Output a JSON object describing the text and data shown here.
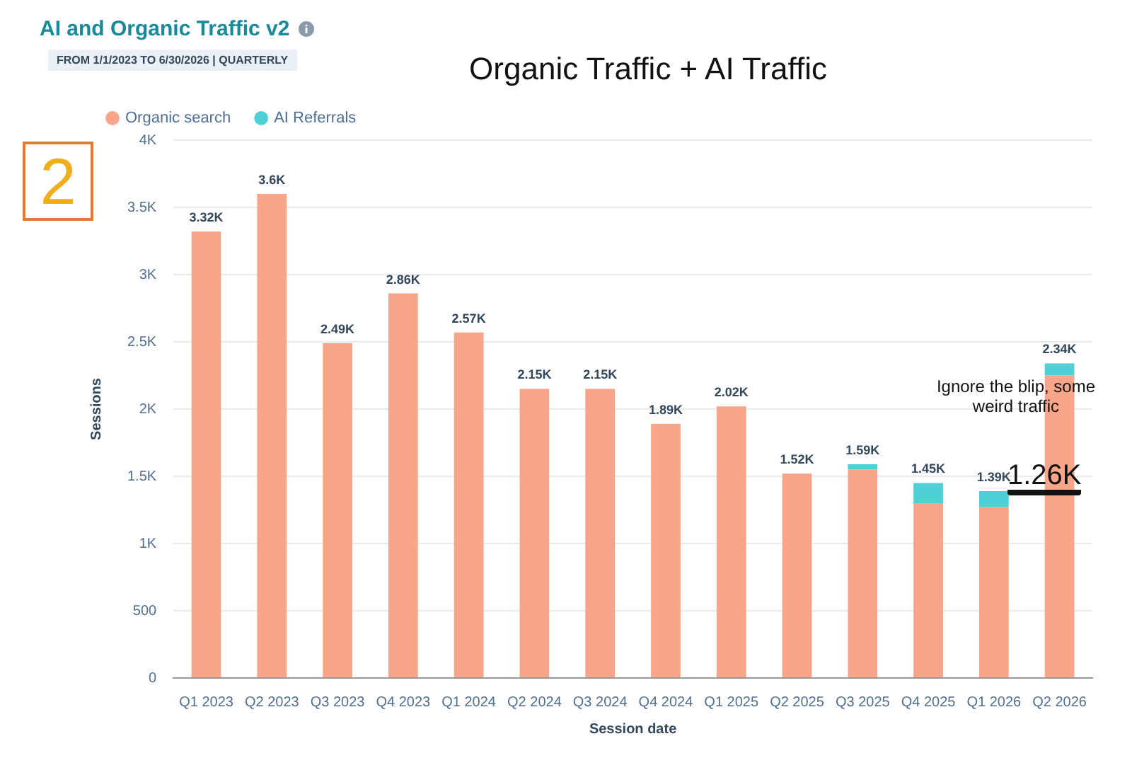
{
  "chart_data": {
    "type": "bar",
    "title": "AI and Organic Traffic v2",
    "subtitle": "FROM 1/1/2023 TO 6/30/2026 | QUARTERLY",
    "xlabel": "Session date",
    "ylabel": "Sessions",
    "categories": [
      "Q1 2023",
      "Q2 2023",
      "Q3 2023",
      "Q4 2023",
      "Q1 2024",
      "Q2 2024",
      "Q3 2024",
      "Q4 2024",
      "Q1 2025",
      "Q2 2025",
      "Q3 2025",
      "Q4 2025",
      "Q1 2026",
      "Q2 2026"
    ],
    "series": [
      {
        "name": "Organic search",
        "color": "#f8a58a",
        "values": [
          3320,
          3600,
          2490,
          2860,
          2570,
          2150,
          2150,
          1890,
          2020,
          1520,
          1550,
          1300,
          1270,
          2250
        ]
      },
      {
        "name": "AI Referrals",
        "color": "#4fd0d6",
        "values": [
          0,
          0,
          0,
          0,
          0,
          0,
          0,
          0,
          0,
          0,
          40,
          150,
          120,
          90
        ]
      }
    ],
    "stacked": true,
    "totals": [
      "3.32K",
      "3.6K",
      "2.49K",
      "2.86K",
      "2.57K",
      "2.15K",
      "2.15K",
      "1.89K",
      "2.02K",
      "1.52K",
      "1.59K",
      "1.45K",
      "1.39K",
      "2.34K"
    ],
    "ylim": [
      0,
      4000
    ],
    "yticks": [
      0,
      500,
      {
        "value": 1000,
        "label": "1K"
      },
      {
        "value": 1500,
        "label": "1.5K"
      },
      {
        "value": 2000,
        "label": "2K"
      },
      {
        "value": 2500,
        "label": "2.5K"
      },
      {
        "value": 3000,
        "label": "3K"
      },
      {
        "value": 3500,
        "label": "3.5K"
      },
      {
        "value": 4000,
        "label": "4K"
      }
    ],
    "grid": "y",
    "legend": "top left",
    "annotations": [
      "Organic Traffic + AI Traffic",
      "2",
      "Ignore the blip, some weird traffic",
      "1.26K"
    ]
  }
}
